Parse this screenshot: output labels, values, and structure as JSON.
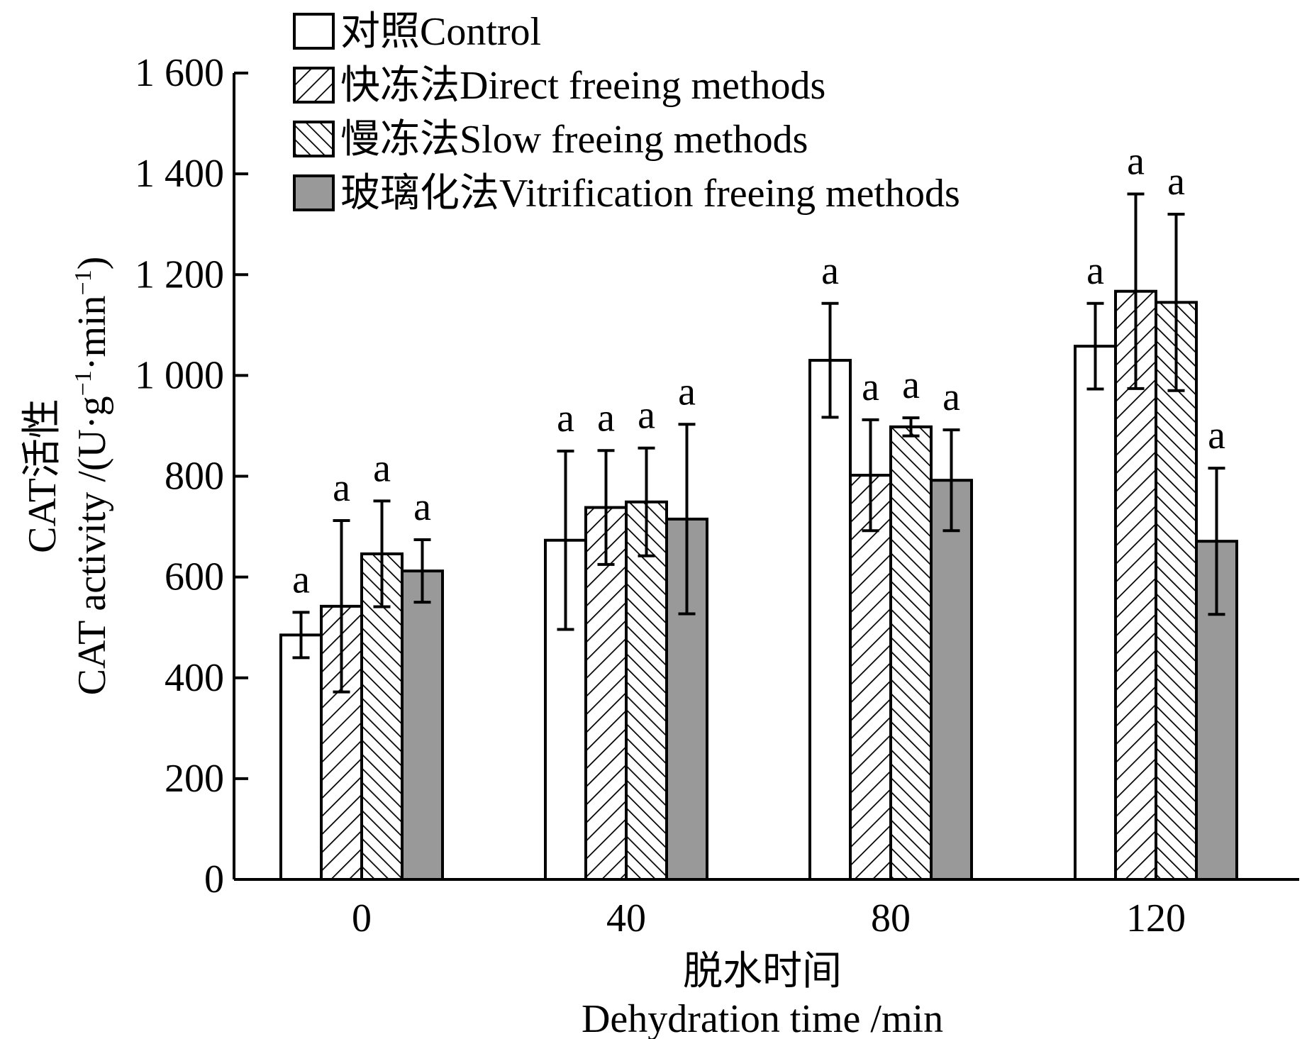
{
  "chart_data": {
    "type": "bar",
    "title": "",
    "xlabel_cn": "脱水时间",
    "xlabel_en": "Dehydration time /min",
    "ylabel_cn": "CAT活性",
    "ylabel_en": "CAT activity /(U·g",
    "ylabel_en_mid": "·min",
    "ylabel_sup": "−1",
    "ylim": [
      0,
      1600
    ],
    "yticks": [
      "0",
      "200",
      "400",
      "600",
      "800",
      "1 000",
      "1 200",
      "1 400",
      "1 600"
    ],
    "categories": [
      "0",
      "40",
      "80",
      "120"
    ],
    "legend_position": "top-left",
    "series": [
      {
        "name": "对照Control",
        "pattern": "none",
        "color": "#ffffff",
        "values": [
          485,
          673,
          1030,
          1058
        ],
        "errors": [
          45,
          177,
          113,
          85
        ],
        "labels": [
          "a",
          "a",
          "a",
          "a"
        ]
      },
      {
        "name": "快冻法Direct freeing methods",
        "pattern": "hatch-forward",
        "color": "#ffffff",
        "values": [
          542,
          738,
          802,
          1167
        ],
        "errors": [
          170,
          113,
          110,
          193
        ],
        "labels": [
          "a",
          "a",
          "a",
          "a"
        ]
      },
      {
        "name": "慢冻法Slow freeing methods",
        "pattern": "hatch-back",
        "color": "#ffffff",
        "values": [
          646,
          749,
          898,
          1145
        ],
        "errors": [
          105,
          107,
          18,
          175
        ],
        "labels": [
          "a",
          "a",
          "a",
          "a"
        ]
      },
      {
        "name": "玻璃化法Vitrification freeing methods",
        "pattern": "solid",
        "color": "#999999",
        "values": [
          612,
          715,
          792,
          671
        ],
        "errors": [
          62,
          188,
          100,
          145
        ],
        "labels": [
          "a",
          "a",
          "a",
          "a"
        ]
      }
    ]
  }
}
